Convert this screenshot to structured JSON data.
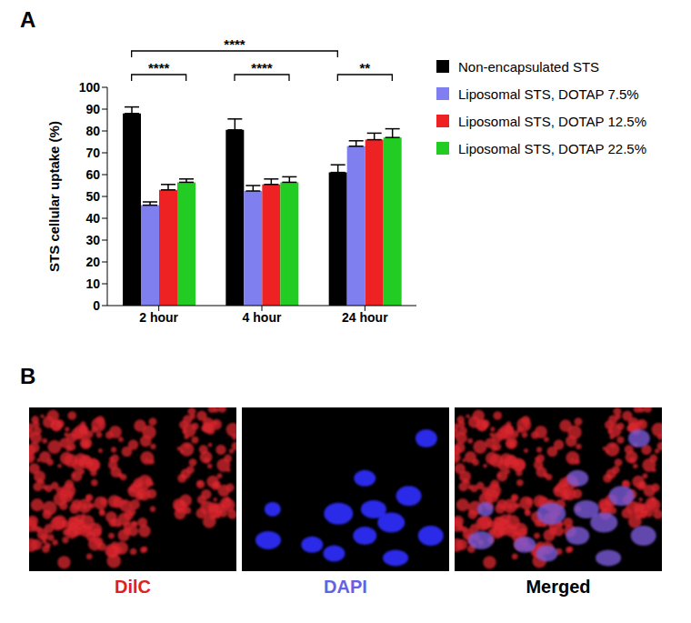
{
  "panel_label": "A",
  "chart_data": {
    "type": "bar",
    "categories": [
      "2 hour",
      "4 hour",
      "24 hour"
    ],
    "y_label": "STS cellular uptake (%)",
    "ylim": [
      0,
      100
    ],
    "yticks": [
      0,
      10,
      20,
      30,
      40,
      50,
      60,
      70,
      80,
      90,
      100
    ],
    "legend": "upper right",
    "series": [
      {
        "name": "Non-encapsulated STS",
        "color": "#000000",
        "values": [
          88,
          80.5,
          61
        ],
        "errors": [
          3,
          5,
          3.5
        ]
      },
      {
        "name": "Liposomal STS, DOTAP 7.5%",
        "color": "#7f7fef",
        "values": [
          46,
          52.5,
          73
        ],
        "errors": [
          1.5,
          2.5,
          2.5
        ]
      },
      {
        "name": "Liposomal STS, DOTAP 12.5%",
        "color": "#ee2222",
        "values": [
          53,
          55.5,
          76
        ],
        "errors": [
          2.5,
          2.5,
          3
        ]
      },
      {
        "name": "Liposomal STS, DOTAP 22.5%",
        "color": "#22cc22",
        "values": [
          56.5,
          56.5,
          77
        ],
        "errors": [
          1.5,
          2.5,
          4
        ]
      }
    ],
    "significance": [
      {
        "label": "****",
        "category1": "2 hour",
        "series1": "Non-encapsulated STS",
        "category2": "2 hour",
        "series2": "Liposomal STS, DOTAP 22.5%"
      },
      {
        "label": "****",
        "category1": "4 hour",
        "series1": "Non-encapsulated STS",
        "category2": "4 hour",
        "series2": "Liposomal STS, DOTAP 22.5%"
      },
      {
        "label": "**",
        "category1": "24 hour",
        "series1": "Non-encapsulated STS",
        "category2": "24 hour",
        "series2": "Liposomal STS, DOTAP 22.5%"
      },
      {
        "label": "****",
        "category1": "2 hour",
        "series1": "Non-encapsulated STS",
        "category2": "24 hour",
        "series2": "Non-encapsulated STS"
      }
    ]
  },
  "panel_b": {
    "label": "B",
    "images": [
      {
        "label": "DilC",
        "color": "#e02020"
      },
      {
        "label": "DAPI",
        "color": "#6262e6"
      },
      {
        "label": "Merged",
        "color": "#000000"
      }
    ]
  }
}
